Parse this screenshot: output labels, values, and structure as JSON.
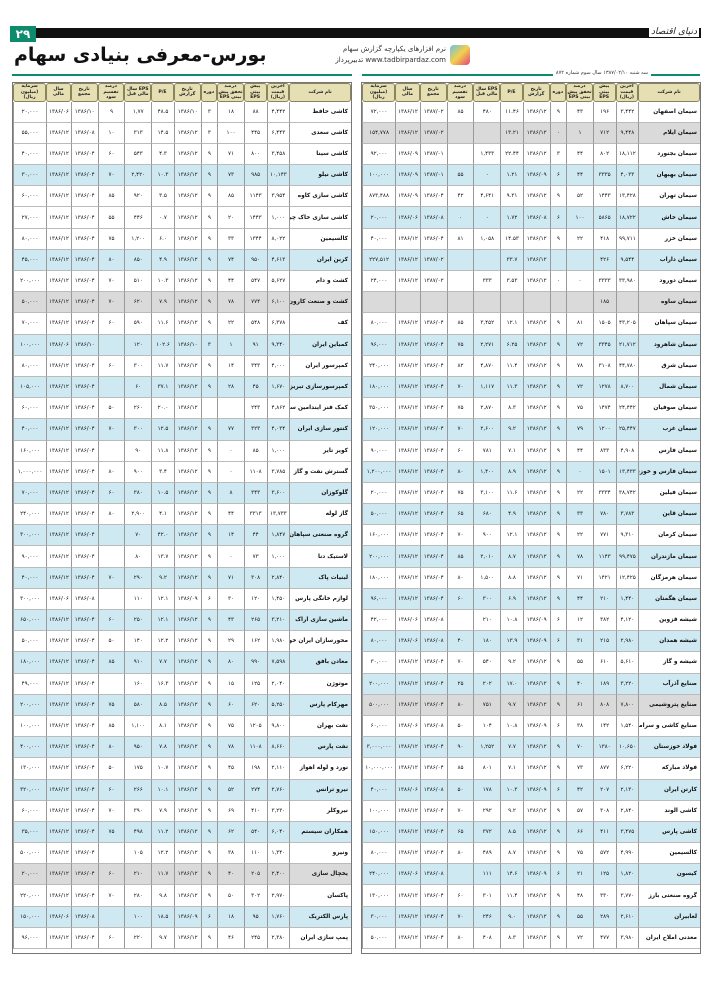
{
  "page": {
    "number": "۲۹",
    "paper_name": "دنیای اقتصاد",
    "title": "بورس-معرفی بنیادی سهام",
    "issue": "سه شنبه ۱۳۸۷/۰۲/۱۰ سال سوم شماره ۸۷۲",
    "logo": {
      "line1": "نرم افزارهای یکپارچه گزارش سهام",
      "line2": "www.tadbirpardaz.com  تدبیرپرداز"
    }
  },
  "columns": [
    "نام شرکت",
    "آخرین قیمت (ریال)",
    "پیش بینی EPS",
    "درصد تحقق پیش بینی EPS",
    "دوره",
    "تاریخ گزارش",
    "P/E",
    "EPS سال مالی قبل",
    "درصد تقسیم سود",
    "تاریخ مجمع",
    "سال مالی",
    "سرمایه (میلیون ریال)"
  ],
  "colors": {
    "header": "#e6dfb3",
    "row_blue": "#cfe9f2",
    "row_grey": "#dadada",
    "accent": "#0e8a6c"
  },
  "right_table": [
    [
      "سیمان اصفهان",
      "۳,۴۴۲",
      "۱۹۶",
      "۴۳",
      "۹",
      "۱۳۸۶/۱۲",
      "۱۱.۴۶",
      "۴۸۰",
      "۸۵",
      "۱۳۸۷/۰۲",
      "۱۳۸۶/۱۲",
      "۷۲,۰۰۰",
      "w"
    ],
    [
      "سیمان ایلام",
      "۹,۴۴۸",
      "۷۱۲",
      "۱",
      "۰",
      "۱۳۸۶/۱۲",
      "۱۳.۲۱",
      "",
      "",
      "۱۳۸۷/۰۲",
      "۱۳۸۶/۱۲",
      "۱۵۴,۷۷۸",
      "g"
    ],
    [
      "سیمان بجنورد",
      "۱۸,۱۱۲",
      "۸۰۲",
      "۴۴",
      "۳",
      "۱۳۸۶/۱۲",
      "۲۲.۴۴",
      "۱,۴۳۳",
      "",
      "۱۳۸۷/۰۱",
      "۱۳۸۶/۰۹",
      "۹۲,۰۰۰",
      "w"
    ],
    [
      "سیمان بهبهان",
      "۴,۰۳۳",
      "۳۳۳۵",
      "۴۴",
      "۶",
      "۱۳۸۶/۰۹",
      "۱.۲۱",
      "۰",
      "۵۵",
      "۱۳۸۷/۰۱",
      "۱۳۸۶/۰۹",
      "۱۰۰,۰۰۰",
      "b"
    ],
    [
      "سیمان تهران",
      "۱۳,۴۲۸",
      "۱۴۴۳",
      "۵۲",
      "۹",
      "۱۳۸۶/۱۲",
      "۹.۳۱",
      "۴,۶۴۱",
      "۴۲",
      "۱۳۸۶/۰۴",
      "۱۳۸۶/۰۹",
      "۸۷۳,۴۸۸",
      "w"
    ],
    [
      "سیمان خاش",
      "۱۸,۷۲۲",
      "۵۸۶۵",
      "۱۰۰",
      "۶",
      "۱۳۸۶/۰۸",
      "۱.۷۲",
      "۰",
      "۰",
      "۱۳۸۶/۰۸",
      "۱۳۸۶/۰۶",
      "۲۰,۰۰۰",
      "b"
    ],
    [
      "سیمان خزر",
      "۹۹,۷۱۱",
      "۴۱۸",
      "۲۲",
      "۹",
      "۱۳۸۶/۱۲",
      "۱۴.۵۳",
      "۱,۰۵۸",
      "۸۱",
      "۱۳۸۶/۰۴",
      "۱۳۸۶/۱۲",
      "۴۰,۰۰۰",
      "w"
    ],
    [
      "سیمان داراب",
      "۹,۵۴۴",
      "۴۲۶",
      "",
      "",
      "۱۳۸۶/۱۲",
      "۳۳.۷",
      "",
      "",
      "۱۳۸۷/۰۲",
      "۱۳۸۶/۱۲",
      "۲۲۷,۵۱۲",
      "b"
    ],
    [
      "سیمان دورود",
      "۳۳,۹۸۰",
      "۳۳۳۳",
      "۰",
      "۰",
      "۱۳۸۶/۱۲",
      "۳.۵۳",
      "۳۳۳",
      "",
      "۱۳۸۷/۰۲",
      "۱۳۸۶/۱۲",
      "۲۴,۰۰۰",
      "w"
    ],
    [
      "سیمان ساوه",
      "",
      "۱۸۵",
      "",
      "",
      "",
      "",
      "",
      "",
      "",
      "",
      "",
      "g"
    ],
    [
      "سیمان سپاهان",
      "۴۳,۲۰۵",
      "۱۵۰۵",
      "۸۱",
      "۹",
      "۱۳۸۶/۱۲",
      "۱۲.۱",
      "۳,۴۵۲",
      "۸۵",
      "۱۳۸۶/۰۴",
      "۱۳۸۶/۱۲",
      "۸۰,۰۰۰",
      "w"
    ],
    [
      "سیمان شاهرود",
      "۲۱,۷۱۲",
      "۳۳۴۵",
      "۷۲",
      "۹",
      "۱۳۸۶/۱۲",
      "۶.۲۵",
      "۲,۲۷۱",
      "۷۵",
      "۱۳۸۶/۰۴",
      "۱۳۸۶/۱۲",
      "۹۶,۰۰۰",
      "b"
    ],
    [
      "سیمان شرق",
      "۴۴,۷۸۰",
      "۳۱۰۸",
      "۷۸",
      "۹",
      "۱۳۸۶/۱۲",
      "۱۱.۴",
      "۴,۸۷۰",
      "۸۲",
      "۱۳۸۶/۰۴",
      "۱۳۸۶/۱۲",
      "۲۴۰,۰۰۰",
      "w"
    ],
    [
      "سیمان شمال",
      "۸,۷۰۰",
      "۱۲۷۸",
      "۷۲",
      "۹",
      "۱۳۸۶/۱۲",
      "۱۱.۳",
      "۱,۱۱۷",
      "۷۰",
      "۱۳۸۶/۰۴",
      "۱۳۸۶/۱۲",
      "۱۸۰,۰۰۰",
      "b"
    ],
    [
      "سیمان صوفیان",
      "۲۴,۴۴۲",
      "۱۴۷۴",
      "۷۵",
      "۹",
      "۱۳۸۶/۱۲",
      "۸.۳",
      "۲,۸۷۰",
      "۷۵",
      "۱۳۸۶/۰۴",
      "۱۳۸۶/۱۲",
      "۳۵۰,۰۰۰",
      "w"
    ],
    [
      "سیمان غرب",
      "۲۵,۴۴۷",
      "۱۲۰۰",
      "۷۹",
      "۹",
      "۱۳۸۶/۱۲",
      "۹.۲",
      "۲,۶۰۰",
      "۷۰",
      "۱۳۸۶/۰۴",
      "۱۳۸۶/۱۲",
      "۱۲۰,۰۰۰",
      "b"
    ],
    [
      "سیمان فارس",
      "۴,۹۰۸",
      "۸۳۳",
      "۴۴",
      "۹",
      "۱۳۸۶/۱۲",
      "۷.۱",
      "۷۸۱",
      "۶۰",
      "۱۳۸۶/۰۴",
      "۱۳۸۶/۱۲",
      "۹۰,۰۰۰",
      "w"
    ],
    [
      "سیمان فارس و خوزستان",
      "۱۳,۴۳۳",
      "۱۵۰۱",
      "۰",
      "۹",
      "۱۳۸۶/۱۲",
      "۸.۹",
      "۱,۴۰۰",
      "۸۰",
      "۱۳۸۶/۰۴",
      "۱۳۸۶/۱۲",
      "۱,۲۰۰,۰۰۰",
      "b"
    ],
    [
      "سیمان فیلین",
      "۳۸,۷۴۲",
      "۳۳۳۴",
      "۲۲",
      "۹",
      "۱۳۸۶/۱۲",
      "۱۱.۶",
      "۳,۱۰۰",
      "۷۵",
      "۱۳۸۶/۰۴",
      "۱۳۸۶/۱۲",
      "۲۰,۰۰۰",
      "w"
    ],
    [
      "سیمان قاین",
      "۳,۷۸۳",
      "۷۸۰",
      "۳۳",
      "۹",
      "۱۳۸۶/۱۲",
      "۴.۹",
      "۶۸۰",
      "۶۵",
      "۱۳۸۶/۰۴",
      "۱۳۸۶/۱۲",
      "۵۰,۰۰۰",
      "b"
    ],
    [
      "سیمان کرمان",
      "۹,۳۱۰",
      "۷۷۱",
      "۲۲",
      "۹",
      "۱۳۸۶/۱۲",
      "۱۲.۱",
      "۹۰۰",
      "۷۰",
      "۱۳۸۶/۰۴",
      "۱۳۸۶/۱۲",
      "۱۶۰,۰۰۰",
      "w"
    ],
    [
      "سیمان مازندران",
      "۹۹,۴۷۵",
      "۱۱۴۳",
      "۷۸",
      "۹",
      "۱۳۸۶/۱۲",
      "۸.۷",
      "۲,۰۱۰",
      "۸۵",
      "۱۳۸۶/۰۴",
      "۱۳۸۶/۱۲",
      "۲۰۰,۰۰۰",
      "b"
    ],
    [
      "سیمان هرمزگان",
      "۱۲,۴۲۵",
      "۱۴۲۱",
      "۷۱",
      "۹",
      "۱۳۸۶/۱۲",
      "۸.۸",
      "۱,۵۰۰",
      "۸۰",
      "۱۳۸۶/۰۴",
      "۱۳۸۶/۱۲",
      "۱۸۰,۰۰۰",
      "w"
    ],
    [
      "سیمان هگمتان",
      "۱,۴۴۰",
      "۲۱۰",
      "۴۴",
      "۹",
      "۱۳۸۶/۱۲",
      "۶.۹",
      "۳۰۰",
      "۶۰",
      "۱۳۸۶/۰۴",
      "۱۳۸۶/۱۲",
      "۹۶,۰۰۰",
      "b"
    ],
    [
      "شیشه قزوین",
      "۴,۱۲۰",
      "۳۸۲",
      "۱۲",
      "۶",
      "۱۳۸۶/۰۹",
      "۱۰.۸",
      "۲۱۰",
      "",
      "۱۳۸۶/۰۸",
      "۱۳۸۶/۰۶",
      "۴۲,۰۰۰",
      "w"
    ],
    [
      "شیشه همدان",
      "۲,۹۸۰",
      "۲۱۵",
      "۳۱",
      "۶",
      "۱۳۸۶/۰۹",
      "۱۳.۹",
      "۱۸۰",
      "۴۰",
      "۱۳۸۶/۰۸",
      "۱۳۸۶/۰۶",
      "۸۰,۰۰۰",
      "b"
    ],
    [
      "شیشه و گاز",
      "۵,۶۱۰",
      "۶۱۰",
      "۵۵",
      "۹",
      "۱۳۸۶/۱۲",
      "۹.۲",
      "۵۴۰",
      "۷۰",
      "۱۳۸۶/۰۴",
      "۱۳۸۶/۱۲",
      "۳۰,۰۰۰",
      "w"
    ],
    [
      "صنایع آذرآب",
      "۳,۲۲۰",
      "۱۸۹",
      "۴۰",
      "۹",
      "۱۳۸۶/۱۲",
      "۱۷.۰",
      "۲۰۲",
      "۲۵",
      "۱۳۸۶/۰۴",
      "۱۳۸۶/۱۲",
      "۲۰۰,۰۰۰",
      "b"
    ],
    [
      "صنایع پتروشیمی",
      "۷,۸۰۰",
      "۸۰۸",
      "۶۱",
      "۹",
      "۱۳۸۶/۱۲",
      "۹.۷",
      "۷۵۱",
      "۸۰",
      "۱۳۸۶/۰۴",
      "۱۳۸۶/۱۲",
      "۵۰۰,۰۰۰",
      "g"
    ],
    [
      "صنایع کاشی و سرامیک",
      "۱,۵۴۰",
      "۱۴۲",
      "۳۸",
      "۶",
      "۱۳۸۶/۰۹",
      "۱۰.۸",
      "۱۰۴",
      "۵۰",
      "۱۳۸۶/۰۸",
      "۱۳۸۶/۰۶",
      "۶۰,۰۰۰",
      "w"
    ],
    [
      "فولاد خوزستان",
      "۱۰,۶۵۰",
      "۱۳۸۰",
      "۷۰",
      "۹",
      "۱۳۸۶/۱۲",
      "۷.۷",
      "۱,۲۵۲",
      "۹۰",
      "۱۳۸۶/۰۴",
      "۱۳۸۶/۱۲",
      "۳,۰۰۰,۰۰۰",
      "b"
    ],
    [
      "فولاد مبارکه",
      "۶,۲۲۰",
      "۸۷۷",
      "۷۳",
      "۹",
      "۱۳۸۶/۱۲",
      "۷.۱",
      "۸۰۱",
      "۸۵",
      "۱۳۸۶/۰۴",
      "۱۳۸۶/۱۲",
      "۱۰,۰۰۰,۰۰۰",
      "w"
    ],
    [
      "کارتن ایران",
      "۲,۱۳۰",
      "۲۰۷",
      "۴۲",
      "۶",
      "۱۳۸۶/۰۹",
      "۱۰.۳",
      "۱۷۸",
      "۵۰",
      "۱۳۸۶/۰۸",
      "۱۳۸۶/۰۶",
      "۴۰,۰۰۰",
      "b"
    ],
    [
      "کاشی الوند",
      "۲,۸۴۰",
      "۳۰۸",
      "۵۷",
      "۹",
      "۱۳۸۶/۱۲",
      "۹.۲",
      "۲۹۲",
      "۷۰",
      "۱۳۸۶/۰۴",
      "۱۳۸۶/۱۲",
      "۱۰۰,۰۰۰",
      "w"
    ],
    [
      "کاشی پارس",
      "۳,۴۷۵",
      "۴۱۱",
      "۶۶",
      "۹",
      "۱۳۸۶/۱۲",
      "۸.۵",
      "۳۷۲",
      "۶۵",
      "۱۳۸۶/۰۴",
      "۱۳۸۶/۱۲",
      "۱۵۰,۰۰۰",
      "b"
    ],
    [
      "کالسیمین",
      "۴,۹۹۰",
      "۵۷۲",
      "۷۵",
      "۹",
      "۱۳۸۶/۱۲",
      "۸.۷",
      "۴۸۹",
      "۸۰",
      "۱۳۸۶/۰۴",
      "۱۳۸۶/۱۲",
      "۸۰,۰۰۰",
      "w"
    ],
    [
      "کیسون",
      "۱,۸۲۰",
      "۱۲۵",
      "۲۱",
      "۶",
      "۱۳۸۶/۰۹",
      "۱۴.۶",
      "۱۱۱",
      "",
      "۱۳۸۶/۰۸",
      "۱۳۸۶/۰۶",
      "۲۴۰,۰۰۰",
      "b"
    ],
    [
      "گروه صنعتی بارز",
      "۳,۷۷۰",
      "۳۳۰",
      "۴۸",
      "۹",
      "۱۳۸۶/۱۲",
      "۱۱.۴",
      "۳۰۱",
      "۶۰",
      "۱۳۸۶/۰۴",
      "۱۳۸۶/۱۲",
      "۱۳۰,۰۰۰",
      "w"
    ],
    [
      "لعابیران",
      "۲,۶۱۰",
      "۲۸۹",
      "۵۵",
      "۹",
      "۱۳۸۶/۱۲",
      "۹.۰",
      "۲۴۶",
      "۷۰",
      "۱۳۸۶/۰۴",
      "۱۳۸۶/۱۲",
      "۳۰,۰۰۰",
      "b"
    ],
    [
      "معدنی املاح ایران",
      "۳,۹۸۰",
      "۴۷۷",
      "۷۲",
      "۹",
      "۱۳۸۶/۱۲",
      "۸.۳",
      "۴۰۸",
      "۸۰",
      "۱۳۸۶/۰۴",
      "۱۳۸۶/۱۲",
      "۵۰,۰۰۰",
      "w"
    ]
  ],
  "left_table": [
    [
      "کاشی حافظ",
      "۴,۴۴۲",
      "۸۸",
      "۱۸",
      "۳",
      "۱۳۸۶/۱۰",
      "۴۸.۵",
      "۱,۷۷",
      "۹",
      "۱۳۸۶/۱۰",
      "۱۳۸۶/۰۶",
      "۲۰,۰۰۰",
      "w"
    ],
    [
      "کاشی سعدی",
      "۶,۴۴۳",
      "۴۴۵",
      "۱۰۰",
      "۳",
      "۱۳۸۶/۱۲",
      "۱۴.۵",
      "۳۱۳",
      "۱۰",
      "۱۳۸۶/۰۸",
      "۱۳۸۶/۱۲",
      "۵۵,۰۰۰",
      "w"
    ],
    [
      "کاشی سینا",
      "۳,۴۵۸",
      "۸۰۰",
      "۷۱",
      "۹",
      "۱۳۸۶/۱۲",
      "۴.۳",
      "۵۴۳",
      "۶۰",
      "۱۳۸۶/۰۴",
      "۱۳۸۶/۱۲",
      "۴۰,۰۰۰",
      "w"
    ],
    [
      "کاشی نیلو",
      "۱۰,۱۴۳",
      "۹۸۵",
      "۷۳",
      "۹",
      "۱۳۸۶/۱۲",
      "۱۰.۳",
      "۲,۴۲۰",
      "۷۰",
      "۱۳۸۶/۰۴",
      "۱۳۸۶/۱۲",
      "۳۰,۰۰۰",
      "b"
    ],
    [
      "کاشی سازی کاوه",
      "۳,۹۵۴",
      "۱۱۴۳",
      "۸۵",
      "۹",
      "۱۳۸۶/۱۲",
      "۳.۵",
      "۹۲۰",
      "۸۵",
      "۱۳۸۶/۰۴",
      "۱۳۸۶/۱۲",
      "۶۰,۰۰۰",
      "w"
    ],
    [
      "کاشی سازی خاک چینی",
      "۱,۰۰۰",
      "۱۴۴۳",
      "۲۰",
      "۹",
      "۱۳۸۶/۱۲",
      "۰.۷",
      "۴۴۶",
      "۵۵",
      "۱۳۸۶/۰۴",
      "۱۳۸۶/۱۲",
      "۲۷,۰۰۰",
      "w"
    ],
    [
      "کالسیمین",
      "۸,۰۲۲",
      "۱۳۴۴",
      "۳۳",
      "۹",
      "۱۳۸۶/۱۲",
      "۶.۰",
      "۱,۲۰۰",
      "۷۵",
      "۱۳۸۶/۰۴",
      "۱۳۸۶/۱۲",
      "۸۰,۰۰۰",
      "w"
    ],
    [
      "کربن ایران",
      "۴,۶۱۳",
      "۹۵۰",
      "۷۴",
      "۹",
      "۱۳۸۶/۱۲",
      "۴.۹",
      "۸۵۰",
      "۸۰",
      "۱۳۸۶/۰۴",
      "۱۳۸۶/۱۲",
      "۴۵,۰۰۰",
      "b"
    ],
    [
      "کشت و دام",
      "۵,۶۲۷",
      "۵۴۷",
      "۴۴",
      "۹",
      "۱۳۸۶/۱۲",
      "۱۰.۳",
      "۵۱۰",
      "۷۰",
      "۱۳۸۶/۰۴",
      "۱۳۸۶/۱۲",
      "۲۰۰,۰۰۰",
      "w"
    ],
    [
      "کشت و صنعت کارون",
      "۶,۱۰۰",
      "۷۷۴",
      "۷۸",
      "۹",
      "۱۳۸۶/۱۲",
      "۷.۹",
      "۶۲۰",
      "۷۰",
      "۱۳۸۶/۰۴",
      "۱۳۸۶/۱۲",
      "۵۰,۰۰۰",
      "g"
    ],
    [
      "کف",
      "۶,۳۷۸",
      "۵۴۸",
      "۲۲",
      "۹",
      "۱۳۸۶/۱۲",
      "۱۱.۶",
      "۵۹۰",
      "۶۰",
      "۱۳۸۶/۰۴",
      "۱۳۸۶/۱۲",
      "۷۰,۰۰۰",
      "w"
    ],
    [
      "کمباین ایران",
      "۹,۳۴۰",
      "۹۱",
      "۱",
      "۳",
      "۱۳۸۶/۱۰",
      "۱۰۲.۶",
      "۱۲۰",
      "",
      "۱۳۸۶/۱۰",
      "۱۳۸۶/۰۶",
      "۱۰۰,۰۰۰",
      "b"
    ],
    [
      "کمپرسور ایران",
      "۴,۰۰۰",
      "۳۴۳",
      "۱۴",
      "۹",
      "۱۳۸۶/۱۲",
      "۱۱.۷",
      "۳۰۰",
      "۶۰",
      "۱۳۸۶/۰۴",
      "۱۳۸۶/۱۲",
      "۸۰,۰۰۰",
      "w"
    ],
    [
      "کمپرسورسازی تبریز",
      "۱,۶۷۰",
      "۴۵",
      "۲۸",
      "۹",
      "۱۳۸۶/۱۲",
      "۳۷.۱",
      "۶۰",
      "",
      "۱۳۸۶/۰۴",
      "۱۳۸۶/۱۲",
      "۱۰۵,۰۰۰",
      "b"
    ],
    [
      "کمک فنر ایندامین سایپا",
      "۴,۸۶۲",
      "۲۴۳",
      "",
      "",
      "۱۳۸۶/۱۲",
      "۲۰.۰",
      "۲۶۰",
      "۵۰",
      "۱۳۸۶/۰۴",
      "۱۳۸۶/۱۲",
      "۶۰,۰۰۰",
      "w"
    ],
    [
      "کنتور سازی ایران",
      "۴,۰۳۴",
      "۳۲۳",
      "۷۷",
      "۹",
      "۱۳۸۶/۱۲",
      "۱۲.۵",
      "۳۰۰",
      "۷۰",
      "۱۳۸۶/۰۴",
      "۱۳۸۶/۱۲",
      "۴۰,۰۰۰",
      "b"
    ],
    [
      "کویر تایر",
      "۱,۰۰۰",
      "۸۵",
      "۰",
      "۹",
      "۱۳۸۶/۱۲",
      "۱۱.۸",
      "۹۰",
      "",
      "۱۳۸۶/۰۴",
      "۱۳۸۶/۱۲",
      "۱۶۰,۰۰۰",
      "w"
    ],
    [
      "گسترش نفت و گاز",
      "۳,۷۸۵",
      "۱۱۰۸",
      "۰",
      "۹",
      "۱۳۸۶/۱۲",
      "۳.۴",
      "۹۰۰",
      "۸۰",
      "۱۳۸۶/۰۴",
      "۱۳۸۶/۱۲",
      "۱,۰۰۰,۰۰۰",
      "w"
    ],
    [
      "گلوکوزان",
      "۳,۶۰۰",
      "۳۴۳",
      "۸",
      "۹",
      "۱۳۸۶/۱۲",
      "۱۰.۵",
      "۳۸۰",
      "۶۰",
      "۱۳۸۶/۰۴",
      "۱۳۸۶/۱۲",
      "۷۰,۰۰۰",
      "b"
    ],
    [
      "گاز لوله",
      "۱۳,۷۳۳",
      "۳۳۱۳",
      "۴۴",
      "۹",
      "۱۳۸۶/۱۲",
      "۴.۱",
      "۲,۹۰۰",
      "۸۰",
      "۱۳۸۶/۰۴",
      "۱۳۸۶/۱۲",
      "۲۴۰,۰۰۰",
      "w"
    ],
    [
      "گروه صنعتی سپاهان",
      "۱,۸۴۷",
      "۴۴",
      "۱۴",
      "۹",
      "۱۳۸۶/۱۲",
      "۴۲.۰",
      "۷۰",
      "",
      "۱۳۸۶/۰۴",
      "۱۳۸۶/۱۲",
      "۳۰۰,۰۰۰",
      "b"
    ],
    [
      "لاستیک دنا",
      "۱,۰۰۰",
      "۷۳",
      "۰",
      "۹",
      "۱۳۸۶/۱۲",
      "۱۳.۷",
      "۸۰",
      "",
      "۱۳۸۶/۰۴",
      "۱۳۸۶/۱۲",
      "۹۰,۰۰۰",
      "w"
    ],
    [
      "لبنیات پاک",
      "۲,۸۴۰",
      "۳۰۸",
      "۷۱",
      "۹",
      "۱۳۸۶/۱۲",
      "۹.۲",
      "۲۹۰",
      "۷۰",
      "۱۳۸۶/۰۴",
      "۱۳۸۶/۱۲",
      "۴۰,۰۰۰",
      "b"
    ],
    [
      "لوازم خانگی پارس",
      "۱,۴۵۰",
      "۱۲۰",
      "۳۰",
      "۶",
      "۱۳۸۶/۰۹",
      "۱۲.۱",
      "۱۱۰",
      "",
      "۱۳۸۶/۰۸",
      "۱۳۸۶/۰۶",
      "۳۰۰,۰۰۰",
      "w"
    ],
    [
      "ماشین سازی اراک",
      "۳,۲۱۰",
      "۲۶۵",
      "۴۳",
      "۹",
      "۱۳۸۶/۱۲",
      "۱۲.۱",
      "۲۵۰",
      "۶۰",
      "۱۳۸۶/۰۴",
      "۱۳۸۶/۱۲",
      "۶۵۰,۰۰۰",
      "b"
    ],
    [
      "محورسازان ایران خودرو",
      "۱,۹۸۰",
      "۱۶۲",
      "۲۹",
      "۹",
      "۱۳۸۶/۱۲",
      "۱۲.۲",
      "۱۴۰",
      "۵۰",
      "۱۳۸۶/۰۴",
      "۱۳۸۶/۱۲",
      "۵۰,۰۰۰",
      "w"
    ],
    [
      "معادن بافق",
      "۷,۵۹۸",
      "۹۹۰",
      "۸۰",
      "۹",
      "۱۳۸۶/۱۲",
      "۷.۷",
      "۹۱۰",
      "۸۵",
      "۱۳۸۶/۰۴",
      "۱۳۸۶/۱۲",
      "۱۸۰,۰۰۰",
      "b"
    ],
    [
      "موتوژن",
      "۲,۰۴۰",
      "۱۲۵",
      "۱۵",
      "۹",
      "۱۳۸۶/۱۲",
      "۱۶.۳",
      "۱۶۰",
      "",
      "۱۳۸۶/۰۴",
      "۱۳۸۶/۱۲",
      "۴۹,۰۰۰",
      "w"
    ],
    [
      "مهرکام پارس",
      "۵,۲۵۰",
      "۶۲۰",
      "۶۰",
      "۹",
      "۱۳۸۶/۱۲",
      "۸.۵",
      "۵۸۰",
      "۷۵",
      "۱۳۸۶/۰۴",
      "۱۳۸۶/۱۲",
      "۲۰۰,۰۰۰",
      "b"
    ],
    [
      "نفت بهران",
      "۹,۸۰۰",
      "۱۲۰۵",
      "۷۵",
      "۹",
      "۱۳۸۶/۱۲",
      "۸.۱",
      "۱,۱۰۰",
      "۸۵",
      "۱۳۸۶/۰۴",
      "۱۳۸۶/۱۲",
      "۱۰۰,۰۰۰",
      "w"
    ],
    [
      "نفت پارس",
      "۸,۶۶۰",
      "۱۱۰۸",
      "۷۸",
      "۹",
      "۱۳۸۶/۱۲",
      "۷.۸",
      "۹۵۰",
      "۸۰",
      "۱۳۸۶/۰۴",
      "۱۳۸۶/۱۲",
      "۴۰۰,۰۰۰",
      "b"
    ],
    [
      "نورد و لوله اهواز",
      "۲,۱۱۰",
      "۱۹۸",
      "۴۵",
      "۹",
      "۱۳۸۶/۱۲",
      "۱۰.۷",
      "۱۷۵",
      "۵۰",
      "۱۳۸۶/۰۴",
      "۱۳۸۶/۱۲",
      "۱۳۰,۰۰۰",
      "w"
    ],
    [
      "نیرو ترانس",
      "۲,۷۶۰",
      "۲۷۴",
      "۵۲",
      "۹",
      "۱۳۸۶/۱۲",
      "۱۰.۱",
      "۲۶۶",
      "۶۰",
      "۱۳۸۶/۰۴",
      "۱۳۸۶/۱۲",
      "۳۲۰,۰۰۰",
      "b"
    ],
    [
      "نیروکلر",
      "۳,۲۳۰",
      "۴۱۰",
      "۶۹",
      "۹",
      "۱۳۸۶/۱۲",
      "۷.۹",
      "۳۹۰",
      "۷۰",
      "۱۳۸۶/۰۴",
      "۱۳۸۶/۱۲",
      "۶۰,۰۰۰",
      "w"
    ],
    [
      "همکاران سیستم",
      "۶,۰۴۰",
      "۵۴۰",
      "۶۲",
      "۹",
      "۱۳۸۶/۱۲",
      "۱۱.۲",
      "۴۹۸",
      "۷۵",
      "۱۳۸۶/۰۴",
      "۱۳۸۶/۱۲",
      "۳۵,۰۰۰",
      "b"
    ],
    [
      "ونیرو",
      "۱,۳۴۰",
      "۱۱۰",
      "۳۸",
      "۹",
      "۱۳۸۶/۱۲",
      "۱۲.۲",
      "۱۰۵",
      "",
      "۱۳۸۶/۰۴",
      "۱۳۸۶/۱۲",
      "۵۰۰,۰۰۰",
      "w"
    ],
    [
      "یخچال سازی",
      "۲,۴۰۰",
      "۲۰۵",
      "۴۰",
      "۹",
      "۱۳۸۶/۱۲",
      "۱۱.۷",
      "۲۱۰",
      "۶۰",
      "۱۳۸۶/۰۴",
      "۱۳۸۶/۱۲",
      "۲۰,۰۰۰",
      "g"
    ],
    [
      "پاکسان",
      "۲,۹۷۰",
      "۳۰۲",
      "۵۰",
      "۹",
      "۱۳۸۶/۱۲",
      "۹.۸",
      "۲۸۰",
      "۷۰",
      "۱۳۸۶/۰۴",
      "۱۳۸۶/۱۲",
      "۲۲۰,۰۰۰",
      "w"
    ],
    [
      "پارس الکتریک",
      "۱,۷۶۰",
      "۹۵",
      "۱۸",
      "۶",
      "۱۳۸۶/۰۹",
      "۱۸.۵",
      "۱۰۰",
      "",
      "۱۳۸۶/۰۸",
      "۱۳۸۶/۰۶",
      "۱۵۰,۰۰۰",
      "b"
    ],
    [
      "پمپ سازی ایران",
      "۲,۳۸۰",
      "۲۴۵",
      "۴۶",
      "۹",
      "۱۳۸۶/۱۲",
      "۹.۷",
      "۲۲۰",
      "۶۰",
      "۱۳۸۶/۰۴",
      "۱۳۸۶/۱۲",
      "۹۶,۰۰۰",
      "w"
    ]
  ]
}
